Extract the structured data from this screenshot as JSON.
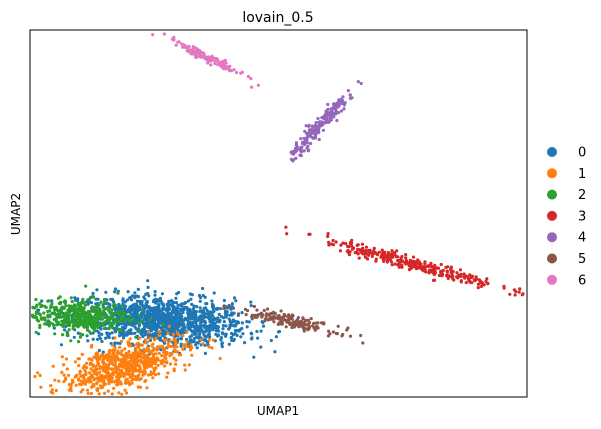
{
  "chart_data": {
    "type": "scatter",
    "title": "lovain_0.5",
    "xlabel": "UMAP1",
    "ylabel": "UMAP2",
    "xticks": [],
    "yticks": [],
    "grid": false,
    "legend_placement": "right",
    "series": [
      {
        "name": "0",
        "color": "#1f77b4",
        "centroid": [
          4.0,
          3.2
        ],
        "spread": [
          1.3,
          0.5
        ],
        "angle": -5,
        "n": 1300
      },
      {
        "name": "1",
        "color": "#ff7f0e",
        "centroid": [
          2.8,
          1.3
        ],
        "spread": [
          1.0,
          0.45
        ],
        "angle": 25,
        "n": 700
      },
      {
        "name": "2",
        "color": "#2ca02c",
        "centroid": [
          1.4,
          3.4
        ],
        "spread": [
          0.8,
          0.35
        ],
        "angle": 0,
        "n": 450
      },
      {
        "name": "3",
        "color": "#d62728",
        "centroid": [
          11.6,
          5.6
        ],
        "spread": [
          1.4,
          0.14
        ],
        "angle": -20,
        "n": 300
      },
      {
        "name": "4",
        "color": "#9467bd",
        "centroid": [
          8.9,
          11.5
        ],
        "spread": [
          0.9,
          0.11
        ],
        "angle": 57,
        "n": 200
      },
      {
        "name": "5",
        "color": "#8c564b",
        "centroid": [
          7.9,
          3.2
        ],
        "spread": [
          0.75,
          0.12
        ],
        "angle": -18,
        "n": 180
      },
      {
        "name": "6",
        "color": "#e377c2",
        "centroid": [
          5.3,
          14.3
        ],
        "spread": [
          0.75,
          0.08
        ],
        "angle": -35,
        "n": 130
      }
    ]
  }
}
